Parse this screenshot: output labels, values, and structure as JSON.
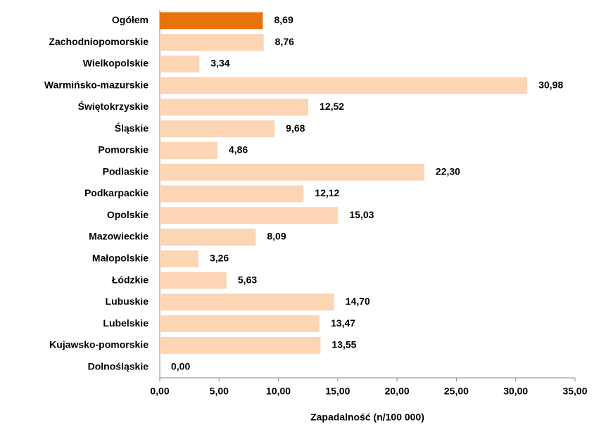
{
  "chart_data": {
    "type": "barh",
    "x_label": "Zapadalność (n/100 000)",
    "categories": [
      "Ogółem",
      "Zachodniopomorskie",
      "Wielkopolskie",
      "Warmińsko-mazurskie",
      "Świętokrzyskie",
      "Śląskie",
      "Pomorskie",
      "Podlaskie",
      "Podkarpackie",
      "Opolskie",
      "Mazowieckie",
      "Małopolskie",
      "Łódzkie",
      "Lubuskie",
      "Lubelskie",
      "Kujawsko-pomorskie",
      "Dolnośląskie"
    ],
    "values": [
      8.69,
      8.76,
      3.34,
      30.98,
      12.52,
      9.68,
      4.86,
      22.3,
      12.12,
      15.03,
      8.09,
      3.26,
      5.63,
      14.7,
      13.47,
      13.55,
      0.0
    ],
    "value_labels": [
      "8,69",
      "8,76",
      "3,34",
      "30,98",
      "12,52",
      "9,68",
      "4,86",
      "22,30",
      "12,12",
      "15,03",
      "8,09",
      "3,26",
      "5,63",
      "14,70",
      "13,47",
      "13,55",
      "0,00"
    ],
    "colors": [
      "#e8720c",
      "#fcd5b5",
      "#fcd5b5",
      "#fcd5b5",
      "#fcd5b5",
      "#fcd5b5",
      "#fcd5b5",
      "#fcd5b5",
      "#fcd5b5",
      "#fcd5b5",
      "#fcd5b5",
      "#fcd5b5",
      "#fcd5b5",
      "#fcd5b5",
      "#fcd5b5",
      "#fcd5b5",
      "#fcd5b5"
    ],
    "xlim": [
      0,
      35
    ],
    "xticks": [
      {
        "value": 0,
        "label": "0,00"
      },
      {
        "value": 5,
        "label": "5,00"
      },
      {
        "value": 10,
        "label": "10,00"
      },
      {
        "value": 15,
        "label": "15,00"
      },
      {
        "value": 20,
        "label": "20,00"
      },
      {
        "value": 25,
        "label": "25,00"
      },
      {
        "value": 30,
        "label": "30,00"
      },
      {
        "value": 35,
        "label": "35,00"
      }
    ]
  }
}
